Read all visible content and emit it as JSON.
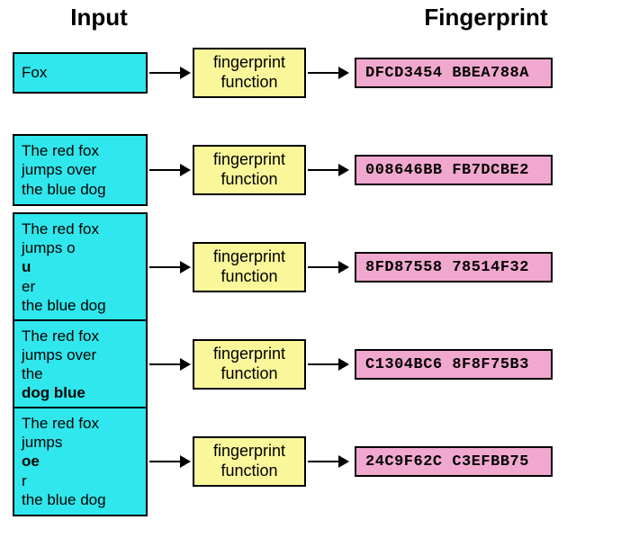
{
  "headers": {
    "input": "Input",
    "fingerprint": "Fingerprint"
  },
  "colors": {
    "input_bg": "#2fe7ec",
    "func_bg": "#faf79b",
    "fp_bg": "#f1a8ce",
    "border": "#000000"
  },
  "fonts": {
    "header_size_pt": 20,
    "header_weight": "bold",
    "body_size_pt": 13,
    "mono_family": "Courier New"
  },
  "func_label": "fingerprint function",
  "rows": [
    {
      "input_html": "Fox",
      "input_tall": false,
      "fingerprint": "DFCD3454 BBEA788A"
    },
    {
      "input_html": "The red fox<br>jumps over<br>the blue dog",
      "input_tall": true,
      "fingerprint": "008646BB FB7DCBE2"
    },
    {
      "input_html": "The red fox<br>jumps o<b>u</b>er<br>the blue dog",
      "input_tall": true,
      "fingerprint": "8FD87558 78514F32"
    },
    {
      "input_html": "The red fox<br>jumps over<br>the <b>dog blue</b>",
      "input_tall": true,
      "fingerprint": "C1304BC6 8F8F75B3"
    },
    {
      "input_html": "The red fox<br>jumps <b>oe</b>r<br>the blue dog",
      "input_tall": true,
      "fingerprint": "24C9F62C C3EFBB75"
    }
  ]
}
